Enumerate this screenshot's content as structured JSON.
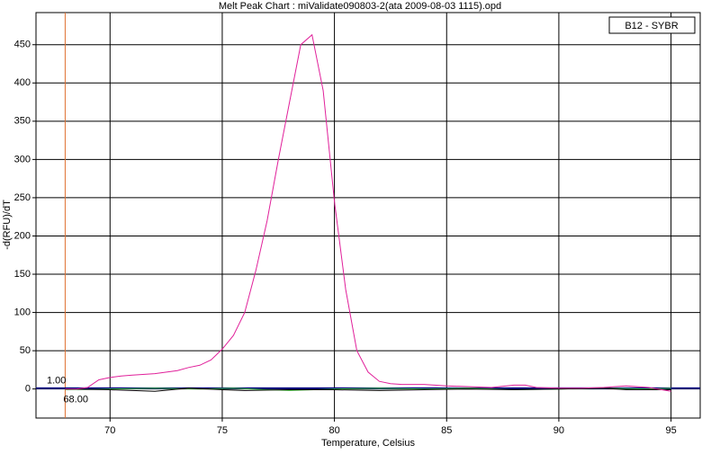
{
  "chart_data": {
    "type": "line",
    "title": "Melt Peak Chart : miValidate090803-2(ata 2009-08-03 1115).opd",
    "x_label": "Temperature, Celsius",
    "y_label": "-d(RFU)/dT",
    "xlim": [
      66.7,
      96.3
    ],
    "ylim": [
      -38,
      492
    ],
    "xticks": [
      70,
      75,
      80,
      85,
      90,
      95
    ],
    "yticks": [
      0,
      50,
      100,
      150,
      200,
      250,
      300,
      350,
      400,
      450
    ],
    "grid": true,
    "legend_position": "upper right",
    "marker": {
      "value": 68,
      "label": "68.00",
      "color": "#e07030"
    },
    "threshold": {
      "value": 1,
      "label": "1.00",
      "color": "#000080"
    },
    "series": [
      {
        "name": "B12 - SYBR",
        "color": "#e0209a",
        "x": [
          68,
          68.5,
          69,
          69.5,
          70,
          70.5,
          71,
          72,
          73,
          73.5,
          74,
          74.5,
          75,
          75.5,
          76,
          76.5,
          77,
          77.5,
          78,
          78.5,
          79,
          79.5,
          80,
          80.5,
          81,
          81.5,
          82,
          82.5,
          83,
          84,
          85,
          86,
          87,
          88,
          88.5,
          89,
          90,
          91,
          92,
          93,
          94,
          95
        ],
        "values": [
          0,
          0,
          2,
          12,
          15,
          17,
          18,
          20,
          24,
          28,
          31,
          38,
          52,
          70,
          100,
          155,
          220,
          300,
          375,
          450,
          463,
          390,
          245,
          130,
          50,
          22,
          10,
          7,
          6,
          6,
          4,
          3,
          2,
          5,
          5,
          2,
          1,
          1,
          2,
          4,
          2,
          -3
        ]
      },
      {
        "color": "#000000",
        "x": [
          68,
          70,
          72,
          73.5,
          75,
          76,
          78,
          80,
          82,
          84,
          86,
          88,
          90,
          92,
          93,
          95
        ],
        "values": [
          0,
          -1,
          -3,
          1,
          -1,
          -2,
          -1,
          -1,
          -2,
          -1,
          0,
          -1,
          0,
          1,
          -1,
          -1
        ]
      },
      {
        "color": "#40c040",
        "x": [
          68,
          70,
          72,
          74,
          75.5,
          77,
          78,
          80,
          82,
          84,
          86,
          88,
          90,
          92,
          94,
          95
        ],
        "values": [
          -1,
          0,
          1,
          0,
          1,
          -1,
          -2,
          0,
          1,
          0,
          1,
          -1,
          0,
          1,
          0,
          1
        ]
      }
    ]
  }
}
